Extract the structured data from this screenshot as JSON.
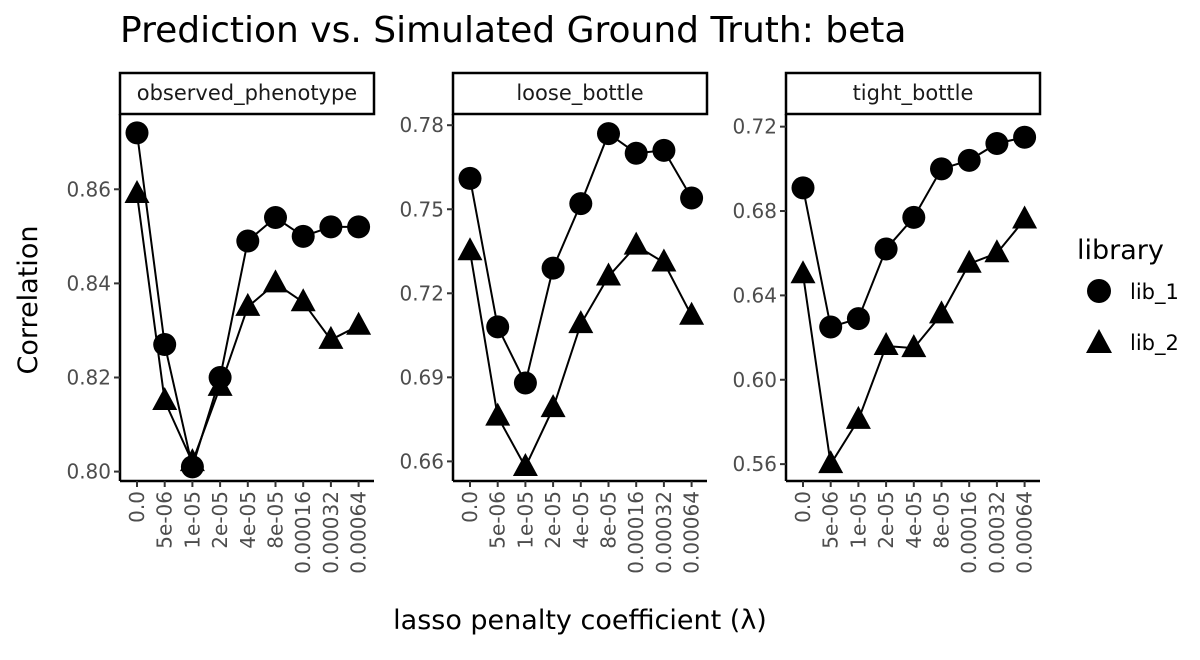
{
  "chart_data": {
    "type": "line",
    "title": "Prediction vs. Simulated Ground Truth: beta",
    "xlabel": "lasso penalty coefficient (λ)",
    "ylabel": "Correlation",
    "categories": [
      "0.0",
      "5e-06",
      "1e-05",
      "2e-05",
      "4e-05",
      "8e-05",
      "0.00016",
      "0.00032",
      "0.00064"
    ],
    "legend": {
      "title": "library",
      "entries": [
        {
          "name": "lib_1",
          "marker": "circle"
        },
        {
          "name": "lib_2",
          "marker": "triangle"
        }
      ],
      "position": "right"
    },
    "grid": false,
    "panels": [
      {
        "name": "observed_phenotype",
        "ylim": [
          0.798,
          0.876
        ],
        "yticks": [
          0.8,
          0.82,
          0.84,
          0.86
        ],
        "ytick_labels": [
          "0.80",
          "0.82",
          "0.84",
          "0.86"
        ],
        "series": [
          {
            "name": "lib_1",
            "values": [
              0.872,
              0.827,
              0.801,
              0.82,
              0.849,
              0.854,
              0.85,
              0.852,
              0.852
            ]
          },
          {
            "name": "lib_2",
            "values": [
              0.859,
              0.815,
              0.802,
              0.818,
              0.835,
              0.84,
              0.836,
              0.828,
              0.831
            ]
          }
        ]
      },
      {
        "name": "loose_bottle",
        "ylim": [
          0.653,
          0.784
        ],
        "yticks": [
          0.66,
          0.69,
          0.72,
          0.75,
          0.78
        ],
        "ytick_labels": [
          "0.66",
          "0.69",
          "0.72",
          "0.75",
          "0.78"
        ],
        "series": [
          {
            "name": "lib_1",
            "values": [
              0.761,
              0.708,
              0.688,
              0.729,
              0.752,
              0.777,
              0.77,
              0.771,
              0.754
            ]
          },
          {
            "name": "lib_2",
            "values": [
              0.735,
              0.676,
              0.658,
              0.679,
              0.709,
              0.726,
              0.737,
              0.731,
              0.712
            ]
          }
        ]
      },
      {
        "name": "tight_bottle",
        "ylim": [
          0.552,
          0.726
        ],
        "yticks": [
          0.56,
          0.6,
          0.64,
          0.68,
          0.72
        ],
        "ytick_labels": [
          "0.56",
          "0.60",
          "0.64",
          "0.68",
          "0.72"
        ],
        "series": [
          {
            "name": "lib_1",
            "values": [
              0.691,
              0.625,
              0.629,
              0.662,
              0.677,
              0.7,
              0.704,
              0.712,
              0.715
            ]
          },
          {
            "name": "lib_2",
            "values": [
              0.65,
              0.56,
              0.581,
              0.616,
              0.615,
              0.631,
              0.655,
              0.66,
              0.676
            ]
          }
        ]
      }
    ]
  }
}
